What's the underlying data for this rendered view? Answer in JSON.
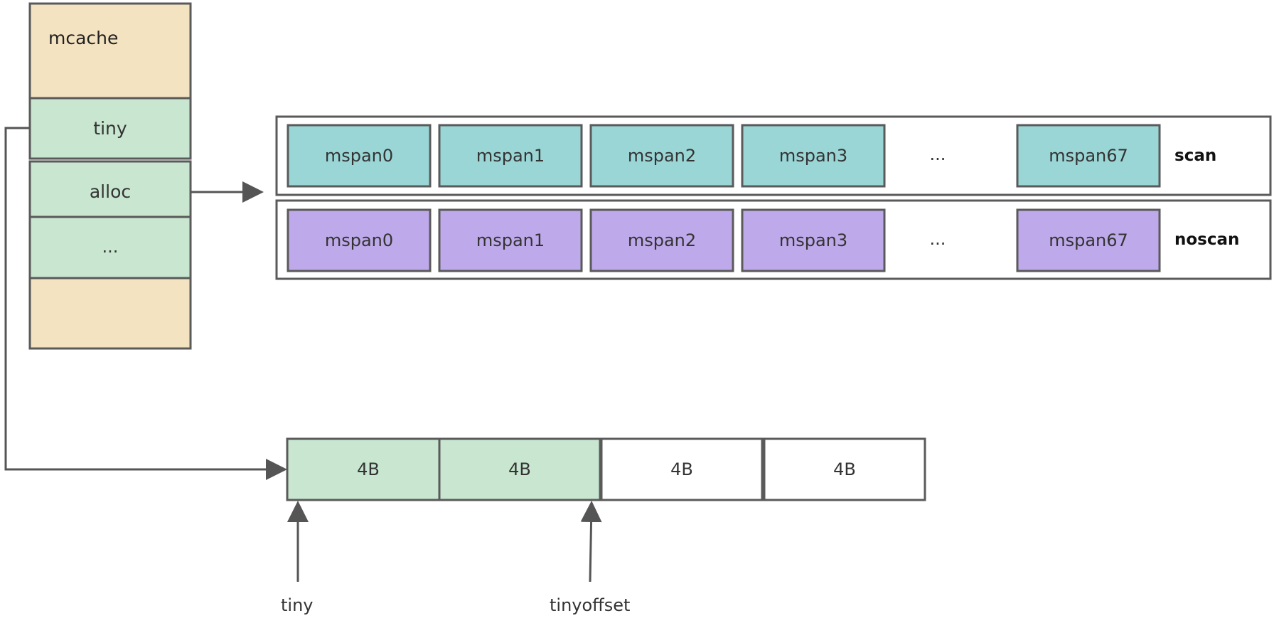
{
  "mcache": {
    "title": "mcache",
    "fields": {
      "tiny": "tiny",
      "alloc": "alloc",
      "more": "..."
    }
  },
  "span_rows": {
    "scan": {
      "label": "scan",
      "spans": [
        "mspan0",
        "mspan1",
        "mspan2",
        "mspan3"
      ],
      "ellipsis": "...",
      "last": "mspan67"
    },
    "noscan": {
      "label": "noscan",
      "spans": [
        "mspan0",
        "mspan1",
        "mspan2",
        "mspan3"
      ],
      "ellipsis": "...",
      "last": "mspan67"
    }
  },
  "tiny_block": {
    "cells": [
      "4B",
      "4B",
      "4B",
      "4B"
    ],
    "used_cells": 2,
    "pointers": {
      "tiny": "tiny",
      "tinyoffset": "tinyoffset"
    }
  },
  "colors": {
    "mcache_bg": "#f3e3c0",
    "field_bg": "#c8e6d0",
    "scan_bg": "#9bd6d6",
    "noscan_bg": "#bea9ea",
    "empty_bg": "#ffffff",
    "border": "#5a5a5a"
  }
}
